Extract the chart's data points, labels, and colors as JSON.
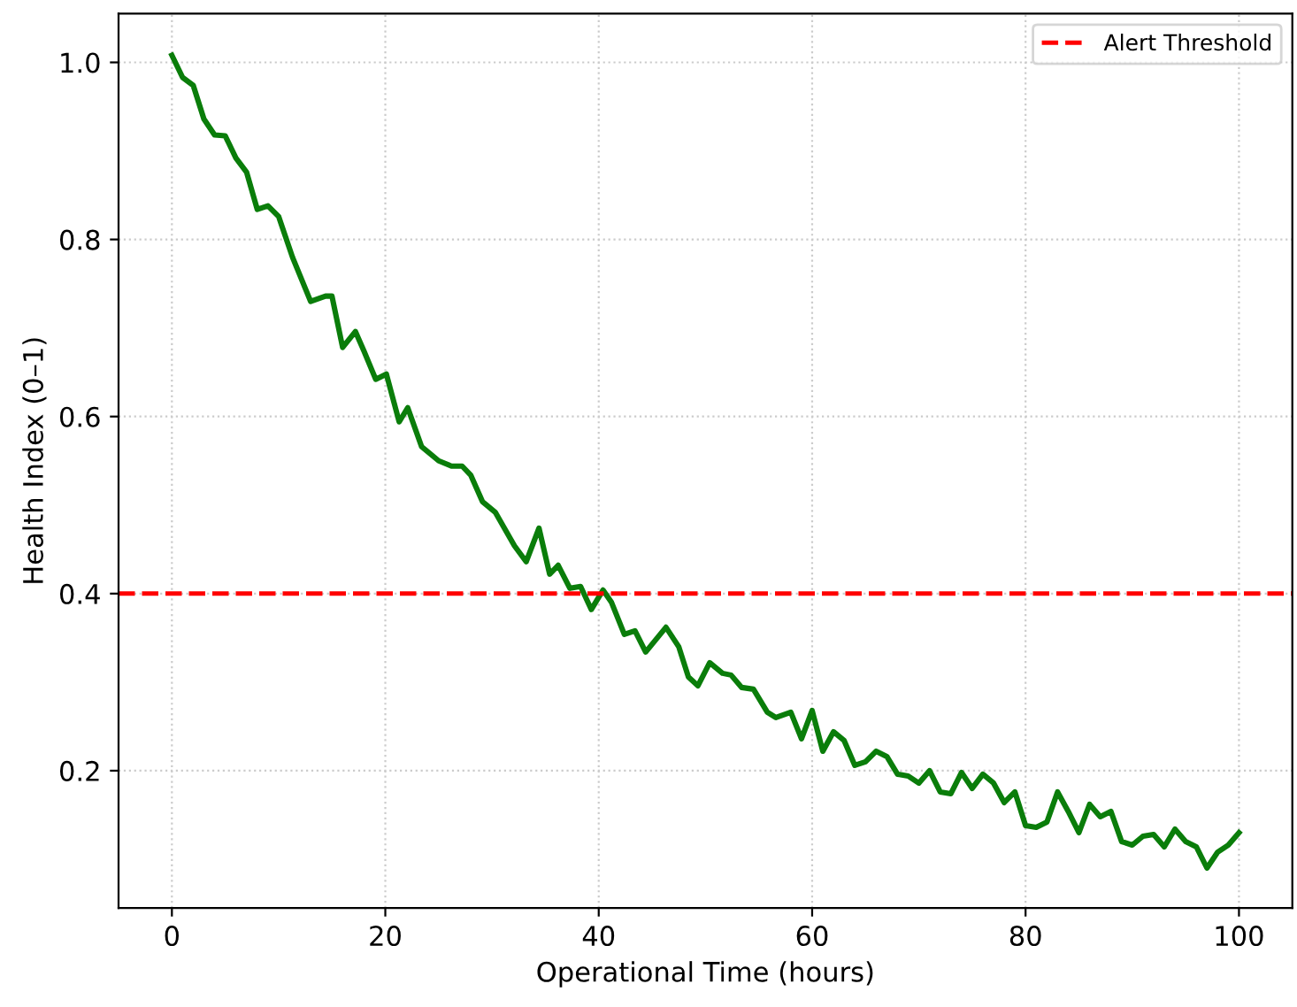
{
  "chart_data": {
    "type": "line",
    "xlabel": "Operational Time (hours)",
    "ylabel": "Health Index (0–1)",
    "series": [
      {
        "color": "#0a7d0a",
        "x": [
          0,
          1,
          2,
          3,
          4,
          5,
          6,
          7,
          8,
          9,
          10,
          11.3,
          13,
          14.4,
          15,
          16,
          17.2,
          18,
          19.1,
          20.1,
          21.3,
          22.1,
          23.4,
          25,
          26.2,
          27.2,
          28,
          29.1,
          30.3,
          32.1,
          33.2,
          34.4,
          35.4,
          36.2,
          37.3,
          38.3,
          39.3,
          40.4,
          41.2,
          42.4,
          43.4,
          44.4,
          46.3,
          47.5,
          48.4,
          49.3,
          50.4,
          51.6,
          52.4,
          53.4,
          54.5,
          55.8,
          56.6,
          58,
          59,
          60,
          61,
          62,
          63,
          64,
          65,
          66,
          67,
          68,
          69,
          70,
          71,
          72,
          73,
          74,
          75,
          76,
          77,
          78,
          79,
          80,
          81,
          82,
          83,
          84,
          85,
          86,
          87,
          88,
          89,
          90,
          91,
          92,
          93,
          94,
          95,
          96,
          97,
          98,
          99,
          100
        ],
        "values": [
          1.008,
          0.983,
          0.974,
          0.936,
          0.918,
          0.917,
          0.892,
          0.876,
          0.834,
          0.838,
          0.826,
          0.78,
          0.73,
          0.736,
          0.736,
          0.678,
          0.696,
          0.674,
          0.642,
          0.648,
          0.594,
          0.61,
          0.566,
          0.55,
          0.544,
          0.544,
          0.534,
          0.504,
          0.492,
          0.454,
          0.436,
          0.474,
          0.422,
          0.432,
          0.406,
          0.408,
          0.382,
          0.404,
          0.39,
          0.354,
          0.358,
          0.334,
          0.362,
          0.34,
          0.306,
          0.296,
          0.322,
          0.31,
          0.308,
          0.294,
          0.292,
          0.266,
          0.26,
          0.266,
          0.236,
          0.268,
          0.222,
          0.244,
          0.234,
          0.206,
          0.21,
          0.222,
          0.216,
          0.196,
          0.194,
          0.186,
          0.2,
          0.176,
          0.174,
          0.198,
          0.18,
          0.196,
          0.186,
          0.164,
          0.176,
          0.138,
          0.136,
          0.142,
          0.176,
          0.154,
          0.13,
          0.162,
          0.148,
          0.154,
          0.12,
          0.116,
          0.126,
          0.128,
          0.114,
          0.134,
          0.12,
          0.114,
          0.09,
          0.108,
          0.116,
          0.13
        ]
      }
    ],
    "ref_lines": [
      {
        "axis": "y",
        "value": 0.4,
        "label": "Alert Threshold",
        "color": "#ff0000",
        "line_style": "dashed"
      }
    ],
    "xlim": [
      -5,
      105
    ],
    "ylim": [
      0.045,
      1.055
    ],
    "xticks": [
      0,
      20,
      40,
      60,
      80,
      100
    ],
    "yticks": [
      0.2,
      0.4,
      0.6,
      0.8,
      {
        "value": 1,
        "label": "1.0"
      }
    ],
    "grid": true,
    "legend": "top right"
  }
}
